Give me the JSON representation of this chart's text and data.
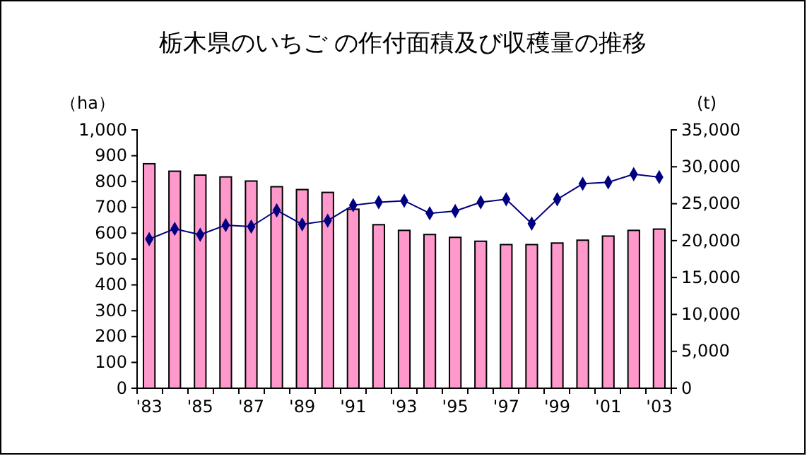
{
  "chart_data": {
    "type": "bar",
    "title": "栃木県のいちご の作付面積及び収穫量の推移",
    "categories": [
      "'83",
      null,
      "'85",
      null,
      "'87",
      null,
      "'89",
      null,
      "'91",
      null,
      "'93",
      null,
      "'95",
      null,
      "'97",
      null,
      "'99",
      null,
      "'01",
      null,
      "'03"
    ],
    "ylabel": "（ha）",
    "y2label": "(t)",
    "ylim": [
      0,
      1000
    ],
    "yticks": [
      0,
      {
        "value": 100,
        "label": "100"
      },
      200,
      300,
      400,
      500,
      600,
      700,
      800,
      900,
      {
        "value": 1000,
        "label": "1,000"
      }
    ],
    "y2lim": [
      0,
      35000
    ],
    "y2ticks": [
      0,
      {
        "value": 5000,
        "label": "5,000"
      },
      {
        "value": 10000,
        "label": "10,000"
      },
      {
        "value": 15000,
        "label": "15,000"
      },
      {
        "value": 20000,
        "label": "20,000"
      },
      {
        "value": 25000,
        "label": "25,000"
      },
      {
        "value": 30000,
        "label": "30,000"
      },
      {
        "value": 35000,
        "label": "35,000"
      }
    ],
    "grid": false,
    "series": [
      {
        "color": "#ff99cc",
        "values": [
          869,
          840,
          825,
          818,
          802,
          780,
          769,
          758,
          693,
          633,
          611,
          595,
          584,
          569,
          556,
          556,
          562,
          573,
          589,
          611,
          616
        ]
      },
      {
        "type": "line",
        "axis": "y2",
        "color": "#000080",
        "marker": "diamond",
        "line_style": "solid",
        "values": [
          20200,
          21600,
          20800,
          22100,
          21900,
          24100,
          22200,
          22700,
          24800,
          25200,
          25400,
          23700,
          24000,
          25200,
          25600,
          22300,
          25600,
          27700,
          27900,
          29000,
          28600
        ]
      }
    ]
  }
}
